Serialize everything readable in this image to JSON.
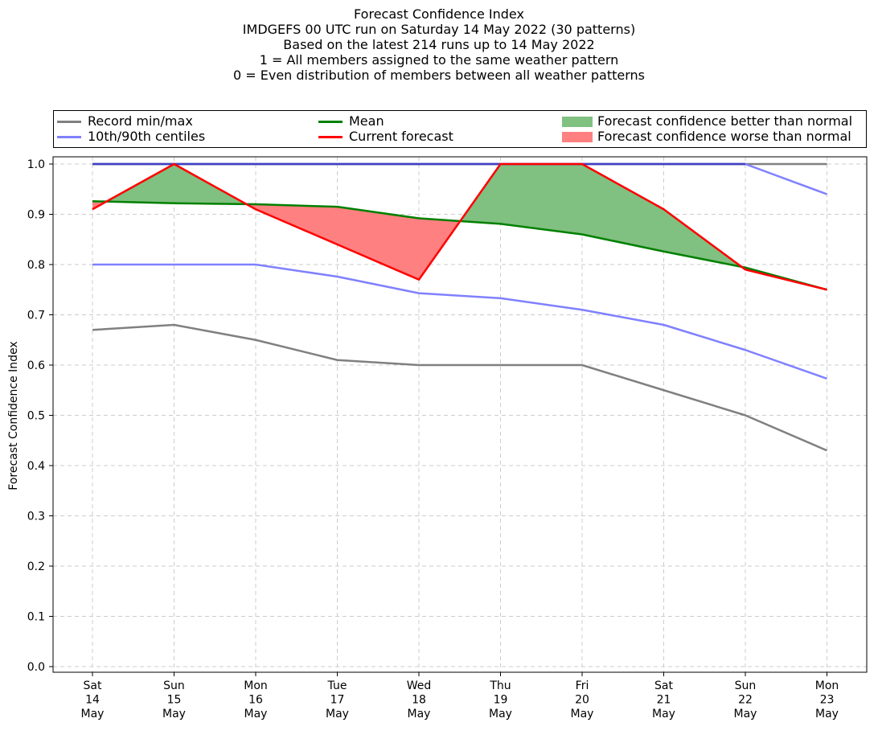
{
  "title_lines": [
    "Forecast Confidence Index",
    "IMDGEFS 00 UTC run on Saturday 14 May 2022 (30 patterns)",
    "Based on the latest 214 runs up to 14 May 2022",
    "1 = All members assigned to the same weather pattern",
    "0 = Even distribution of members between all weather patterns"
  ],
  "legend": {
    "record": "Record min/max",
    "centiles": "10th/90th centiles",
    "mean": "Mean",
    "current": "Current forecast",
    "better": "Forecast confidence better than normal",
    "worse": "Forecast confidence worse than normal"
  },
  "colors": {
    "record": "#808080",
    "centiles": "#8080ff",
    "mean": "#008000",
    "current": "#ff0000",
    "better": "#80c080",
    "worse": "#ff8080",
    "top_line": "#4040c0"
  },
  "chart_data": {
    "type": "line",
    "ylabel": "Forecast Confidence Index",
    "ylim": [
      0.0,
      1.0
    ],
    "yticks": [
      "0.0",
      "0.1",
      "0.2",
      "0.3",
      "0.4",
      "0.5",
      "0.6",
      "0.7",
      "0.8",
      "0.9",
      "1.0"
    ],
    "grid": true,
    "legend_position": "top",
    "categories": [
      {
        "day": "Sat",
        "date": "14",
        "month": "May"
      },
      {
        "day": "Sun",
        "date": "15",
        "month": "May"
      },
      {
        "day": "Mon",
        "date": "16",
        "month": "May"
      },
      {
        "day": "Tue",
        "date": "17",
        "month": "May"
      },
      {
        "day": "Wed",
        "date": "18",
        "month": "May"
      },
      {
        "day": "Thu",
        "date": "19",
        "month": "May"
      },
      {
        "day": "Fri",
        "date": "20",
        "month": "May"
      },
      {
        "day": "Sat",
        "date": "21",
        "month": "May"
      },
      {
        "day": "Sun",
        "date": "22",
        "month": "May"
      },
      {
        "day": "Mon",
        "date": "23",
        "month": "May"
      }
    ],
    "series": [
      {
        "name": "Record min/max",
        "key": "record_min",
        "values": [
          0.67,
          0.68,
          0.65,
          0.61,
          0.6,
          0.6,
          0.6,
          0.55,
          0.5,
          0.43
        ]
      },
      {
        "name": "Record min/max",
        "key": "record_max",
        "values": [
          1.0,
          1.0,
          1.0,
          1.0,
          1.0,
          1.0,
          1.0,
          1.0,
          1.0,
          1.0
        ]
      },
      {
        "name": "10th/90th centiles",
        "key": "p10",
        "values": [
          0.8,
          0.8,
          0.8,
          0.776,
          0.743,
          0.733,
          0.71,
          0.68,
          0.63,
          0.573
        ]
      },
      {
        "name": "10th/90th centiles",
        "key": "p90",
        "values": [
          1.0,
          1.0,
          1.0,
          1.0,
          1.0,
          1.0,
          1.0,
          1.0,
          1.0,
          0.94
        ]
      },
      {
        "name": "Mean",
        "key": "mean",
        "values": [
          0.926,
          0.922,
          0.92,
          0.915,
          0.892,
          0.881,
          0.86,
          0.826,
          0.794,
          0.75
        ]
      },
      {
        "name": "Current forecast",
        "key": "current",
        "values": [
          0.91,
          1.0,
          0.91,
          0.84,
          0.77,
          1.0,
          1.0,
          0.91,
          0.79,
          0.75
        ]
      }
    ]
  }
}
